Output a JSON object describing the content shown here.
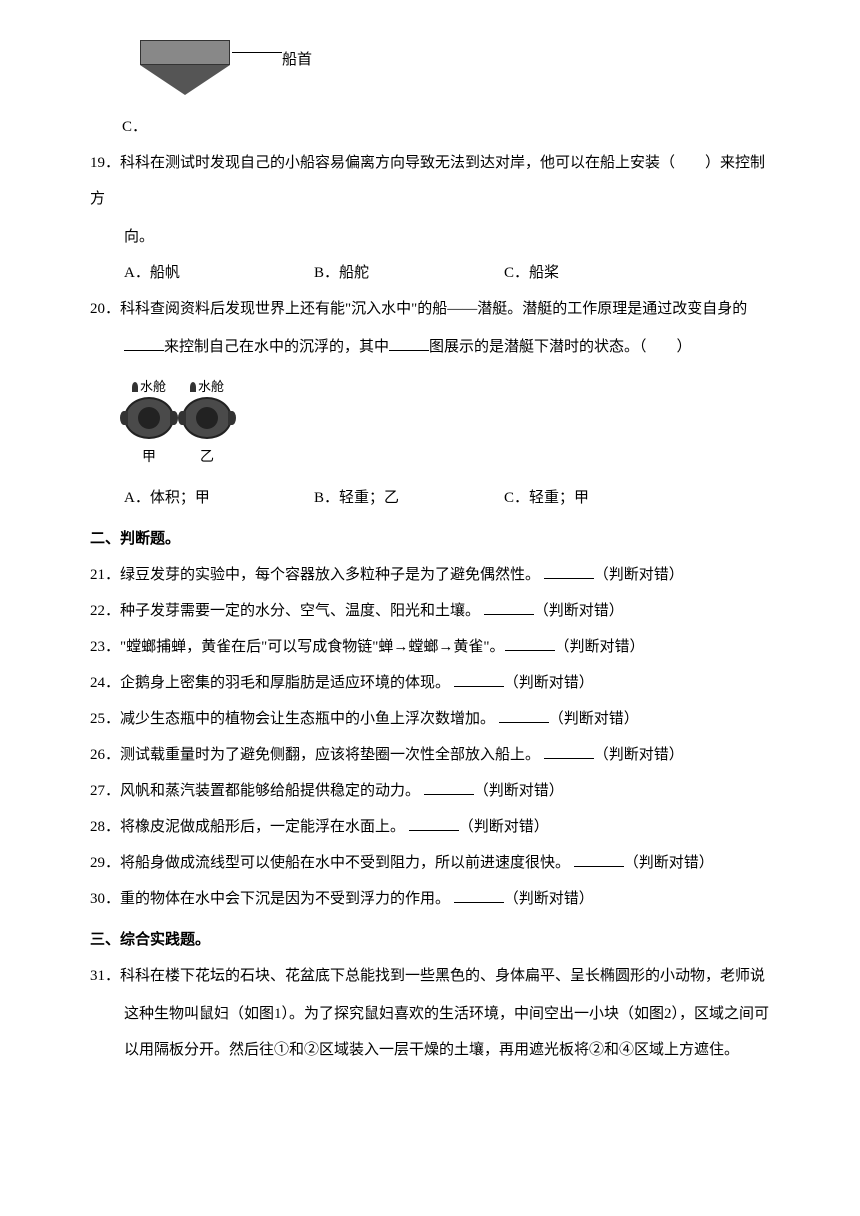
{
  "bow": {
    "label": "船首",
    "option_c": "C．"
  },
  "q19": {
    "num": "19．",
    "text": "科科在测试时发现自己的小船容易偏离方向导致无法到达对岸，他可以在船上安装（　　）来控制方",
    "text2": "向。",
    "opt_a": "A．船帆",
    "opt_b": "B．船舵",
    "opt_c": "C．船桨"
  },
  "q20": {
    "num": "20．",
    "text": "科科查阅资料后发现世界上还有能\"沉入水中\"的船——潜艇。潜艇的工作原理是通过改变自身的",
    "text2_prefix": "来控制自己在水中的沉浮的，其中",
    "text2_suffix": "图展示的是潜艇下潜时的状态。（　　）",
    "sub_label": "水舱",
    "sub_jia": "甲",
    "sub_yi": "乙",
    "opt_a": "A．体积；甲",
    "opt_b": "B．轻重；乙",
    "opt_c": "C．轻重；甲"
  },
  "section2": "二、判断题。",
  "q21": {
    "num": "21．",
    "text": "绿豆发芽的实验中，每个容器放入多粒种子是为了避免偶然性。",
    "suffix": "（判断对错）"
  },
  "q22": {
    "num": "22．",
    "text": "种子发芽需要一定的水分、空气、温度、阳光和土壤。",
    "suffix": "（判断对错）"
  },
  "q23": {
    "num": "23．",
    "text": "\"螳螂捕蝉，黄雀在后\"可以写成食物链\"蝉→螳螂→黄雀\"。",
    "suffix": "（判断对错）"
  },
  "q24": {
    "num": "24．",
    "text": "企鹅身上密集的羽毛和厚脂肪是适应环境的体现。",
    "suffix": "（判断对错）"
  },
  "q25": {
    "num": "25．",
    "text": "减少生态瓶中的植物会让生态瓶中的小鱼上浮次数增加。",
    "suffix": "（判断对错）"
  },
  "q26": {
    "num": "26．",
    "text": "测试载重量时为了避免侧翻，应该将垫圈一次性全部放入船上。",
    "suffix": "（判断对错）"
  },
  "q27": {
    "num": "27．",
    "text": "风帆和蒸汽装置都能够给船提供稳定的动力。",
    "suffix": "（判断对错）"
  },
  "q28": {
    "num": "28．",
    "text": "将橡皮泥做成船形后，一定能浮在水面上。",
    "suffix": "（判断对错）"
  },
  "q29": {
    "num": "29．",
    "text": "将船身做成流线型可以使船在水中不受到阻力，所以前进速度很快。",
    "suffix": "（判断对错）"
  },
  "q30": {
    "num": "30．",
    "text": "重的物体在水中会下沉是因为不受到浮力的作用。",
    "suffix": "（判断对错）"
  },
  "section3": "三、综合实践题。",
  "q31": {
    "num": "31．",
    "text": "科科在楼下花坛的石块、花盆底下总能找到一些黑色的、身体扁平、呈长椭圆形的小动物，老师说",
    "text2": "这种生物叫鼠妇（如图1）。为了探究鼠妇喜欢的生活环境，中间空出一小块（如图2），区域之间可",
    "text3": "以用隔板分开。然后往①和②区域装入一层干燥的土壤，再用遮光板将②和④区域上方遮住。"
  }
}
